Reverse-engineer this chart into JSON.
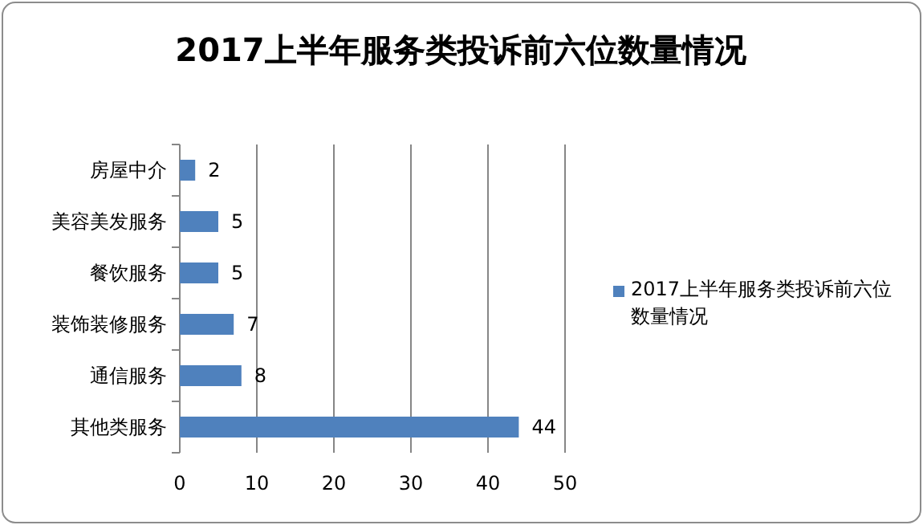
{
  "chart_data": {
    "type": "bar",
    "orientation": "horizontal",
    "title": "2017上半年服务类投诉前六位数量情况",
    "categories": [
      "房屋中介",
      "美容美发服务",
      "餐饮服务",
      "装饰装修服务",
      "通信服务",
      "其他类服务"
    ],
    "series": [
      {
        "name": "2017上半年服务类投诉前六位数量情况",
        "color": "#4f81bd",
        "values": [
          2,
          5,
          5,
          7,
          8,
          44
        ]
      }
    ],
    "xlim": [
      0,
      50
    ],
    "xticks": [
      0,
      10,
      20,
      30,
      40,
      50
    ],
    "grid": "x",
    "legend": "right",
    "data_labels": true
  }
}
